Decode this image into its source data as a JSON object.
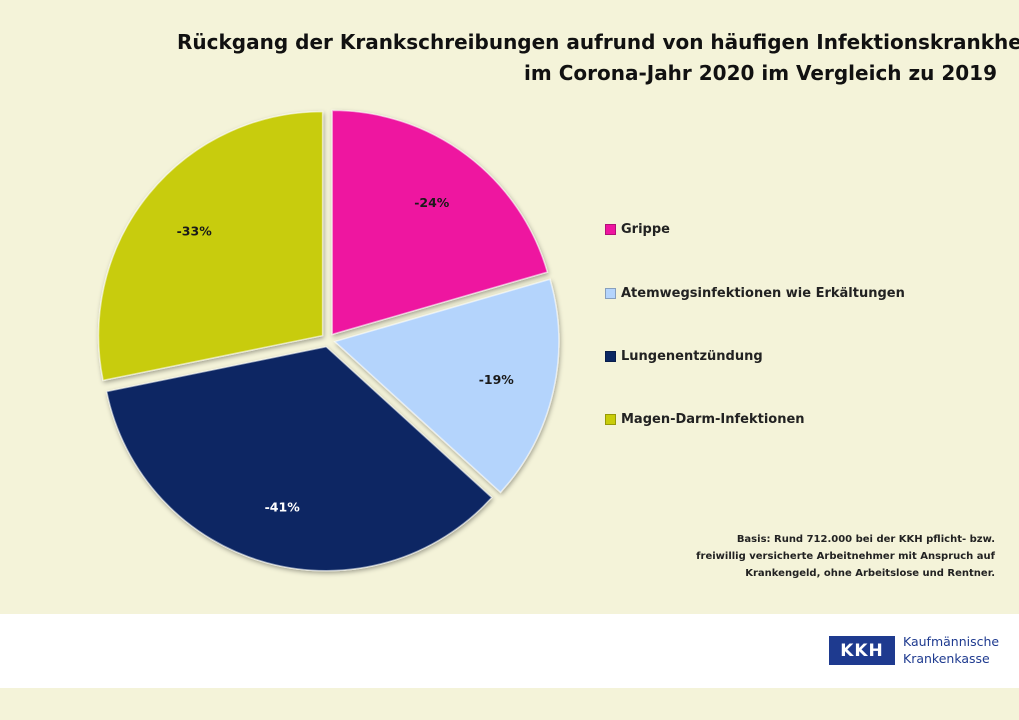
{
  "chart_data": {
    "type": "pie",
    "title_lines": [
      "Rückgang der Krankschreibungen aufrund von häufigen Infektionskrankheiten",
      "im Corona-Jahr 2020 im Vergleich zu 2019"
    ],
    "categories": [
      "Grippe",
      "Atemwegsinfektionen wie Erkältungen",
      "Lungenentzündung",
      "Magen-Darm-Infektionen"
    ],
    "values": [
      -24,
      -19,
      -41,
      -33
    ],
    "data_labels": [
      "-24%",
      "-19%",
      "-41%",
      "-33%"
    ],
    "colors": [
      "#ee14a0",
      "#b4d4fc",
      "#0b2763",
      "#c8cc0a"
    ],
    "legend_position": "right"
  },
  "note_lines": [
    "Basis: Rund 712.000 bei der KKH pflicht- bzw.",
    "freiwillig versicherte Arbeitnehmer mit Anspruch auf",
    "Krankengeld, ohne Arbeitslose und Rentner."
  ],
  "logo": {
    "mark": "KKH",
    "line1": "Kaufmännische",
    "line2": "Krankenkasse"
  }
}
